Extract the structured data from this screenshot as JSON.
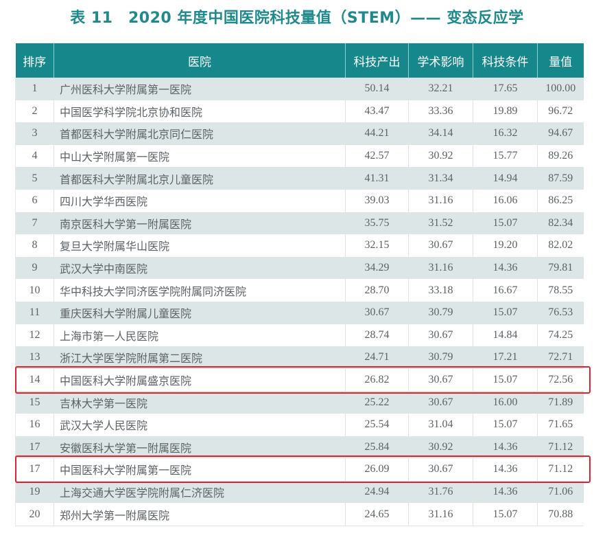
{
  "title": "表 11　2020 年度中国医院科技量值（STEM）—— 变态反应学",
  "table": {
    "headers": [
      "排序",
      "医院",
      "科技产出",
      "学术影响",
      "科技条件",
      "量值"
    ],
    "rows": [
      {
        "rank": "1",
        "hospital": "广州医科大学附属第一医院",
        "output": "50.14",
        "impact": "32.21",
        "conditions": "17.65",
        "value": "100.00"
      },
      {
        "rank": "2",
        "hospital": "中国医学科学院北京协和医院",
        "output": "43.47",
        "impact": "33.36",
        "conditions": "19.89",
        "value": "96.72"
      },
      {
        "rank": "3",
        "hospital": "首都医科大学附属北京同仁医院",
        "output": "44.21",
        "impact": "34.14",
        "conditions": "16.32",
        "value": "94.67"
      },
      {
        "rank": "4",
        "hospital": "中山大学附属第一医院",
        "output": "42.57",
        "impact": "30.92",
        "conditions": "15.77",
        "value": "89.26"
      },
      {
        "rank": "5",
        "hospital": "首都医科大学附属北京儿童医院",
        "output": "41.31",
        "impact": "31.34",
        "conditions": "14.94",
        "value": "87.59"
      },
      {
        "rank": "6",
        "hospital": "四川大学华西医院",
        "output": "39.03",
        "impact": "31.16",
        "conditions": "16.06",
        "value": "86.25"
      },
      {
        "rank": "7",
        "hospital": "南京医科大学第一附属医院",
        "output": "35.75",
        "impact": "31.52",
        "conditions": "15.07",
        "value": "82.34"
      },
      {
        "rank": "8",
        "hospital": "复旦大学附属华山医院",
        "output": "32.15",
        "impact": "30.67",
        "conditions": "19.20",
        "value": "82.02"
      },
      {
        "rank": "9",
        "hospital": "武汉大学中南医院",
        "output": "34.29",
        "impact": "31.16",
        "conditions": "14.36",
        "value": "79.81"
      },
      {
        "rank": "10",
        "hospital": "华中科技大学同济医学院附属同济医院",
        "output": "28.70",
        "impact": "33.18",
        "conditions": "16.67",
        "value": "78.55"
      },
      {
        "rank": "11",
        "hospital": "重庆医科大学附属儿童医院",
        "output": "30.67",
        "impact": "30.79",
        "conditions": "15.07",
        "value": "76.53"
      },
      {
        "rank": "12",
        "hospital": "上海市第一人民医院",
        "output": "28.74",
        "impact": "30.67",
        "conditions": "14.84",
        "value": "74.25"
      },
      {
        "rank": "13",
        "hospital": "浙江大学医学院附属第二医院",
        "output": "24.71",
        "impact": "30.79",
        "conditions": "17.21",
        "value": "72.71"
      },
      {
        "rank": "14",
        "hospital": "中国医科大学附属盛京医院",
        "output": "26.82",
        "impact": "30.67",
        "conditions": "15.07",
        "value": "72.56"
      },
      {
        "rank": "15",
        "hospital": "吉林大学第一医院",
        "output": "25.22",
        "impact": "30.67",
        "conditions": "16.00",
        "value": "71.89"
      },
      {
        "rank": "16",
        "hospital": "武汉大学人民医院",
        "output": "25.54",
        "impact": "31.04",
        "conditions": "15.07",
        "value": "71.65"
      },
      {
        "rank": "17",
        "hospital": "安徽医科大学第一附属医院",
        "output": "25.84",
        "impact": "30.92",
        "conditions": "14.36",
        "value": "71.12"
      },
      {
        "rank": "17",
        "hospital": "中国医科大学附属第一医院",
        "output": "26.09",
        "impact": "30.67",
        "conditions": "14.36",
        "value": "71.12"
      },
      {
        "rank": "19",
        "hospital": "上海交通大学医学院附属仁济医院",
        "output": "24.94",
        "impact": "31.76",
        "conditions": "14.36",
        "value": "71.06"
      },
      {
        "rank": "20",
        "hospital": "郑州大学第一附属医院",
        "output": "24.65",
        "impact": "31.16",
        "conditions": "15.07",
        "value": "70.88"
      }
    ]
  },
  "highlights": [
    {
      "row_index": 13,
      "color": "#e0232a"
    },
    {
      "row_index": 17,
      "color": "#e0232a"
    }
  ],
  "colors": {
    "title": "#1f8a8d",
    "header_bg": "#16878b",
    "stripe": "#dce6e7",
    "highlight_border": "#e0232a"
  }
}
